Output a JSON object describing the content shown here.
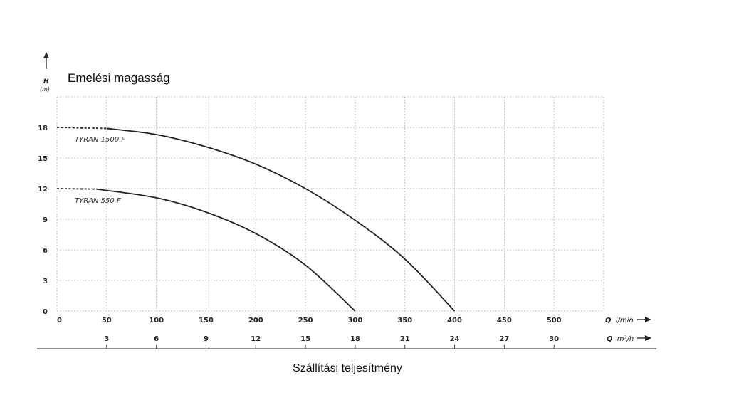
{
  "chart_data": {
    "type": "line",
    "title": "Emelési magasság",
    "xlabel": "Szállítási teljesítmény",
    "y_axis": {
      "symbol": "H",
      "unit": "(m)",
      "ticks": [
        0,
        3,
        6,
        9,
        12,
        15,
        18
      ],
      "ylim": [
        0,
        21
      ]
    },
    "x_axis_primary": {
      "symbol": "Q",
      "unit": "l/min",
      "ticks": [
        0,
        50,
        100,
        150,
        200,
        250,
        300,
        350,
        400,
        450,
        500
      ],
      "xlim": [
        0,
        550
      ]
    },
    "x_axis_secondary": {
      "symbol": "Q",
      "unit": "m³/h",
      "ticks": [
        3,
        6,
        9,
        12,
        15,
        18,
        21,
        24,
        27,
        30
      ]
    },
    "grid": true,
    "series": [
      {
        "name": "TYRAN 1500 F",
        "dashed_until_x": 50,
        "points": [
          [
            0,
            18
          ],
          [
            50,
            17.9
          ],
          [
            100,
            17.3
          ],
          [
            150,
            16.1
          ],
          [
            200,
            14.4
          ],
          [
            250,
            12.0
          ],
          [
            300,
            8.9
          ],
          [
            350,
            5.1
          ],
          [
            400,
            0
          ]
        ]
      },
      {
        "name": "TYRAN 550 F",
        "dashed_until_x": 40,
        "points": [
          [
            0,
            12
          ],
          [
            40,
            11.95
          ],
          [
            100,
            11.1
          ],
          [
            150,
            9.7
          ],
          [
            200,
            7.6
          ],
          [
            250,
            4.5
          ],
          [
            300,
            0
          ]
        ]
      }
    ]
  }
}
